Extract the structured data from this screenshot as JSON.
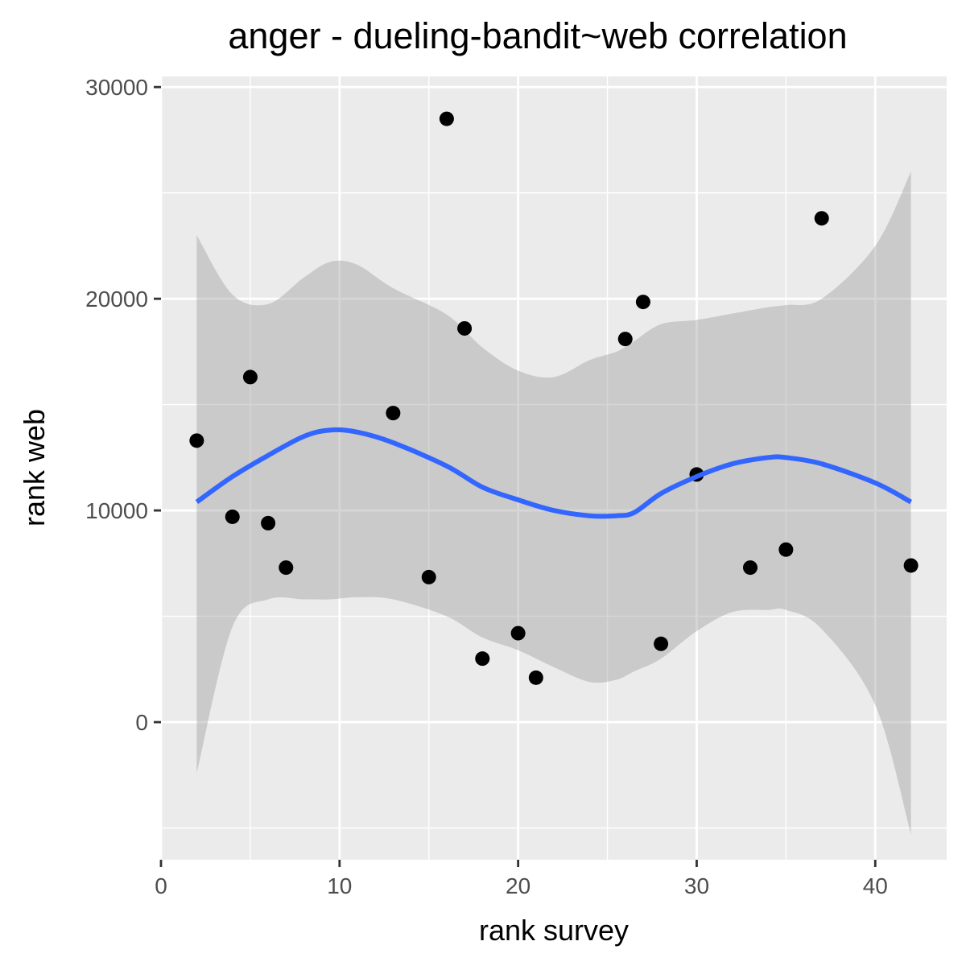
{
  "chart_data": {
    "type": "scatter",
    "title": "anger - dueling-bandit~web correlation",
    "xlabel": "rank survey",
    "ylabel": "rank web",
    "xlim": [
      0,
      44
    ],
    "ylim": [
      -6500,
      30500
    ],
    "x_ticks": [
      0,
      10,
      20,
      30,
      40
    ],
    "x_tick_labels": [
      "0",
      "10",
      "20",
      "30",
      "40"
    ],
    "y_ticks": [
      0,
      10000,
      20000,
      30000
    ],
    "y_tick_labels": [
      "0",
      "10000",
      "20000",
      "30000"
    ],
    "grid": true,
    "panel_background": "#ebebeb",
    "point_color": "#000000",
    "smooth_color": "#3366ff",
    "ribbon_color": "#999999",
    "points": [
      {
        "x": 2,
        "y": 13300
      },
      {
        "x": 4,
        "y": 9700
      },
      {
        "x": 5,
        "y": 16300
      },
      {
        "x": 6,
        "y": 9400
      },
      {
        "x": 7,
        "y": 7300
      },
      {
        "x": 13,
        "y": 14600
      },
      {
        "x": 15,
        "y": 6850
      },
      {
        "x": 16,
        "y": 28500
      },
      {
        "x": 17,
        "y": 18600
      },
      {
        "x": 18,
        "y": 3000
      },
      {
        "x": 20,
        "y": 4200
      },
      {
        "x": 21,
        "y": 2100
      },
      {
        "x": 26,
        "y": 18100
      },
      {
        "x": 27,
        "y": 19850
      },
      {
        "x": 28,
        "y": 3700
      },
      {
        "x": 30,
        "y": 11700
      },
      {
        "x": 33,
        "y": 7300
      },
      {
        "x": 35,
        "y": 8150
      },
      {
        "x": 37,
        "y": 23800
      },
      {
        "x": 42,
        "y": 7400
      }
    ],
    "smooth": {
      "method": "loess",
      "x": [
        2,
        4,
        6,
        8,
        9.5,
        11,
        13,
        16,
        18,
        20,
        22,
        24,
        25.5,
        26.5,
        28,
        30,
        32,
        34,
        35,
        37,
        40,
        42
      ],
      "y": [
        10400,
        11600,
        12600,
        13500,
        13800,
        13700,
        13200,
        12100,
        11100,
        10500,
        10000,
        9750,
        9750,
        9900,
        10800,
        11600,
        12200,
        12500,
        12500,
        12200,
        11300,
        10400
      ],
      "upper": [
        23000,
        20200,
        19750,
        21000,
        21750,
        21600,
        20500,
        19250,
        17700,
        16600,
        16300,
        17100,
        17500,
        18000,
        18800,
        19000,
        19300,
        19600,
        19700,
        20000,
        22500,
        26000
      ],
      "lower": [
        -2400,
        4500,
        5800,
        5800,
        5800,
        5900,
        5800,
        5000,
        4000,
        3400,
        2600,
        1900,
        2000,
        2400,
        3000,
        4300,
        5200,
        5300,
        5300,
        4400,
        800,
        -5300
      ]
    }
  }
}
